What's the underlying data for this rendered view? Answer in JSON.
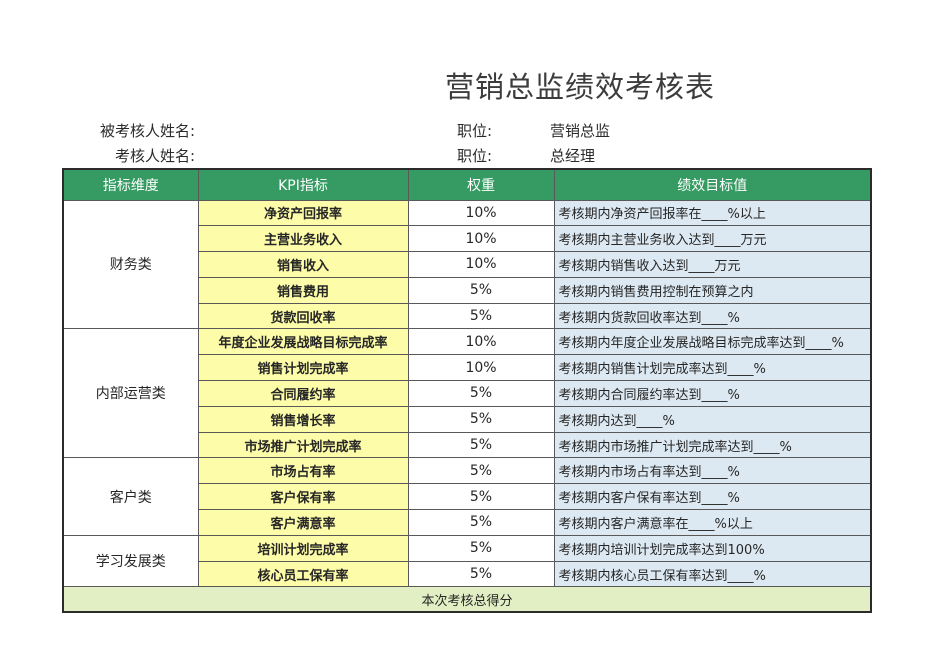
{
  "page": {
    "title": "营销总监绩效考核表"
  },
  "info": {
    "evaluee_label": "被考核人姓名:",
    "evaluator_label": "考核人姓名:",
    "position_label_1": "职位:",
    "position_value_1": "营销总监",
    "position_label_2": "职位:",
    "position_value_2": "总经理"
  },
  "table": {
    "headers": [
      "指标维度",
      "KPI指标",
      "权重",
      "绩效目标值"
    ],
    "sections": [
      {
        "dimension": "财务类",
        "rows": [
          {
            "kpi": "净资产回报率",
            "weight": "10%",
            "target": "考核期内净资产回报率在____%以上"
          },
          {
            "kpi": "主营业务收入",
            "weight": "10%",
            "target": "考核期内主营业务收入达到____万元"
          },
          {
            "kpi": "销售收入",
            "weight": "10%",
            "target": "考核期内销售收入达到____万元"
          },
          {
            "kpi": "销售费用",
            "weight": "5%",
            "target": "考核期内销售费用控制在预算之内"
          },
          {
            "kpi": "货款回收率",
            "weight": "5%",
            "target": "考核期内货款回收率达到____%"
          }
        ]
      },
      {
        "dimension": "内部运营类",
        "rows": [
          {
            "kpi": "年度企业发展战略目标完成率",
            "weight": "10%",
            "target": "考核期内年度企业发展战略目标完成率达到____%"
          },
          {
            "kpi": "销售计划完成率",
            "weight": "10%",
            "target": "考核期内销售计划完成率达到____%"
          },
          {
            "kpi": "合同履约率",
            "weight": "5%",
            "target": "考核期内合同履约率达到____%"
          },
          {
            "kpi": "销售增长率",
            "weight": "5%",
            "target": "考核期内达到____%"
          },
          {
            "kpi": "市场推广计划完成率",
            "weight": "5%",
            "target": "考核期内市场推广计划完成率达到____%"
          }
        ]
      },
      {
        "dimension": "客户类",
        "rows": [
          {
            "kpi": "市场占有率",
            "weight": "5%",
            "target": "考核期内市场占有率达到____%"
          },
          {
            "kpi": "客户保有率",
            "weight": "5%",
            "target": "考核期内客户保有率达到____%"
          },
          {
            "kpi": "客户满意率",
            "weight": "5%",
            "target": "考核期内客户满意率在____%以上"
          }
        ]
      },
      {
        "dimension": "学习发展类",
        "rows": [
          {
            "kpi": "培训计划完成率",
            "weight": "5%",
            "target": "考核期内培训计划完成率达到100%"
          },
          {
            "kpi": "核心员工保有率",
            "weight": "5%",
            "target": "考核期内核心员工保有率达到____%"
          }
        ]
      }
    ],
    "footer": "本次考核总得分"
  },
  "colors": {
    "header_bg": "#359b62",
    "kpi_bg": "#fdfda9",
    "target_bg": "#dde9f2",
    "footer_bg": "#e2eec3",
    "title_color": "#3c3c3c"
  }
}
